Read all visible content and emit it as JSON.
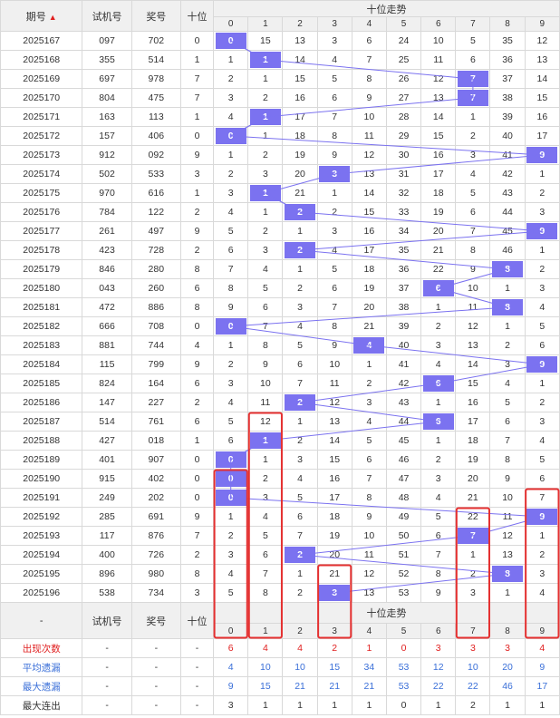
{
  "header": {
    "period": "期号",
    "trial": "试机号",
    "prize": "奖号",
    "tens": "十位",
    "trend": "十位走势",
    "sort_arrow": "▲"
  },
  "digits": [
    "0",
    "1",
    "2",
    "3",
    "4",
    "5",
    "6",
    "7",
    "8",
    "9"
  ],
  "rows": [
    {
      "period": "2025167",
      "trial": "097",
      "prize": "702",
      "tens": "0",
      "cells": [
        "0",
        "15",
        "13",
        "3",
        "6",
        "24",
        "10",
        "5",
        "35",
        "12"
      ],
      "hit": 0
    },
    {
      "period": "2025168",
      "trial": "355",
      "prize": "514",
      "tens": "1",
      "cells": [
        "1",
        "1",
        "14",
        "4",
        "7",
        "25",
        "11",
        "6",
        "36",
        "13"
      ],
      "hit": 1
    },
    {
      "period": "2025169",
      "trial": "697",
      "prize": "978",
      "tens": "7",
      "cells": [
        "2",
        "1",
        "15",
        "5",
        "8",
        "26",
        "12",
        "7",
        "37",
        "14"
      ],
      "hit": 7
    },
    {
      "period": "2025170",
      "trial": "804",
      "prize": "475",
      "tens": "7",
      "cells": [
        "3",
        "2",
        "16",
        "6",
        "9",
        "27",
        "13",
        "7",
        "38",
        "15"
      ],
      "hit": 7
    },
    {
      "period": "2025171",
      "trial": "163",
      "prize": "113",
      "tens": "1",
      "cells": [
        "4",
        "1",
        "17",
        "7",
        "10",
        "28",
        "14",
        "1",
        "39",
        "16"
      ],
      "hit": 1
    },
    {
      "period": "2025172",
      "trial": "157",
      "prize": "406",
      "tens": "0",
      "cells": [
        "0",
        "1",
        "18",
        "8",
        "11",
        "29",
        "15",
        "2",
        "40",
        "17"
      ],
      "hit": 0
    },
    {
      "period": "2025173",
      "trial": "912",
      "prize": "092",
      "tens": "9",
      "cells": [
        "1",
        "2",
        "19",
        "9",
        "12",
        "30",
        "16",
        "3",
        "41",
        "9"
      ],
      "hit": 9
    },
    {
      "period": "2025174",
      "trial": "502",
      "prize": "533",
      "tens": "3",
      "cells": [
        "2",
        "3",
        "20",
        "3",
        "13",
        "31",
        "17",
        "4",
        "42",
        "1"
      ],
      "hit": 3
    },
    {
      "period": "2025175",
      "trial": "970",
      "prize": "616",
      "tens": "1",
      "cells": [
        "3",
        "1",
        "21",
        "1",
        "14",
        "32",
        "18",
        "5",
        "43",
        "2"
      ],
      "hit": 1
    },
    {
      "period": "2025176",
      "trial": "784",
      "prize": "122",
      "tens": "2",
      "cells": [
        "4",
        "1",
        "2",
        "2",
        "15",
        "33",
        "19",
        "6",
        "44",
        "3"
      ],
      "hit": 2
    },
    {
      "period": "2025177",
      "trial": "261",
      "prize": "497",
      "tens": "9",
      "cells": [
        "5",
        "2",
        "1",
        "3",
        "16",
        "34",
        "20",
        "7",
        "45",
        "9"
      ],
      "hit": 9
    },
    {
      "period": "2025178",
      "trial": "423",
      "prize": "728",
      "tens": "2",
      "cells": [
        "6",
        "3",
        "2",
        "4",
        "17",
        "35",
        "21",
        "8",
        "46",
        "1"
      ],
      "hit": 2
    },
    {
      "period": "2025179",
      "trial": "846",
      "prize": "280",
      "tens": "8",
      "cells": [
        "7",
        "4",
        "1",
        "5",
        "18",
        "36",
        "22",
        "9",
        "8",
        "2"
      ],
      "hit": 8
    },
    {
      "period": "2025180",
      "trial": "043",
      "prize": "260",
      "tens": "6",
      "cells": [
        "8",
        "5",
        "2",
        "6",
        "19",
        "37",
        "6",
        "10",
        "1",
        "3"
      ],
      "hit": 6
    },
    {
      "period": "2025181",
      "trial": "472",
      "prize": "886",
      "tens": "8",
      "cells": [
        "9",
        "6",
        "3",
        "7",
        "20",
        "38",
        "1",
        "11",
        "8",
        "4"
      ],
      "hit": 8
    },
    {
      "period": "2025182",
      "trial": "666",
      "prize": "708",
      "tens": "0",
      "cells": [
        "0",
        "7",
        "4",
        "8",
        "21",
        "39",
        "2",
        "12",
        "1",
        "5"
      ],
      "hit": 0
    },
    {
      "period": "2025183",
      "trial": "881",
      "prize": "744",
      "tens": "4",
      "cells": [
        "1",
        "8",
        "5",
        "9",
        "4",
        "40",
        "3",
        "13",
        "2",
        "6"
      ],
      "hit": 4
    },
    {
      "period": "2025184",
      "trial": "115",
      "prize": "799",
      "tens": "9",
      "cells": [
        "2",
        "9",
        "6",
        "10",
        "1",
        "41",
        "4",
        "14",
        "3",
        "9"
      ],
      "hit": 9
    },
    {
      "period": "2025185",
      "trial": "824",
      "prize": "164",
      "tens": "6",
      "cells": [
        "3",
        "10",
        "7",
        "11",
        "2",
        "42",
        "6",
        "15",
        "4",
        "1"
      ],
      "hit": 6
    },
    {
      "period": "2025186",
      "trial": "147",
      "prize": "227",
      "tens": "2",
      "cells": [
        "4",
        "11",
        "2",
        "12",
        "3",
        "43",
        "1",
        "16",
        "5",
        "2"
      ],
      "hit": 2
    },
    {
      "period": "2025187",
      "trial": "514",
      "prize": "761",
      "tens": "6",
      "cells": [
        "5",
        "12",
        "1",
        "13",
        "4",
        "44",
        "6",
        "17",
        "6",
        "3"
      ],
      "hit": 6
    },
    {
      "period": "2025188",
      "trial": "427",
      "prize": "018",
      "tens": "1",
      "cells": [
        "6",
        "1",
        "2",
        "14",
        "5",
        "45",
        "1",
        "18",
        "7",
        "4"
      ],
      "hit": 1
    },
    {
      "period": "2025189",
      "trial": "401",
      "prize": "907",
      "tens": "0",
      "cells": [
        "0",
        "1",
        "3",
        "15",
        "6",
        "46",
        "2",
        "19",
        "8",
        "5"
      ],
      "hit": 0
    },
    {
      "period": "2025190",
      "trial": "915",
      "prize": "402",
      "tens": "0",
      "cells": [
        "0",
        "2",
        "4",
        "16",
        "7",
        "47",
        "3",
        "20",
        "9",
        "6"
      ],
      "hit": 0
    },
    {
      "period": "2025191",
      "trial": "249",
      "prize": "202",
      "tens": "0",
      "cells": [
        "0",
        "3",
        "5",
        "17",
        "8",
        "48",
        "4",
        "21",
        "10",
        "7"
      ],
      "hit": 0
    },
    {
      "period": "2025192",
      "trial": "285",
      "prize": "691",
      "tens": "9",
      "cells": [
        "1",
        "4",
        "6",
        "18",
        "9",
        "49",
        "5",
        "22",
        "11",
        "9"
      ],
      "hit": 9
    },
    {
      "period": "2025193",
      "trial": "117",
      "prize": "876",
      "tens": "7",
      "cells": [
        "2",
        "5",
        "7",
        "19",
        "10",
        "50",
        "6",
        "7",
        "12",
        "1"
      ],
      "hit": 7
    },
    {
      "period": "2025194",
      "trial": "400",
      "prize": "726",
      "tens": "2",
      "cells": [
        "3",
        "6",
        "2",
        "20",
        "11",
        "51",
        "7",
        "1",
        "13",
        "2"
      ],
      "hit": 2
    },
    {
      "period": "2025195",
      "trial": "896",
      "prize": "980",
      "tens": "8",
      "cells": [
        "4",
        "7",
        "1",
        "21",
        "12",
        "52",
        "8",
        "2",
        "8",
        "3"
      ],
      "hit": 8
    },
    {
      "period": "2025196",
      "trial": "538",
      "prize": "734",
      "tens": "3",
      "cells": [
        "5",
        "8",
        "2",
        "3",
        "13",
        "53",
        "9",
        "3",
        "1",
        "4"
      ],
      "hit": 3
    }
  ],
  "footer": {
    "dash": "-",
    "trial": "试机号",
    "prize": "奖号",
    "tens": "十位",
    "trend": "十位走势"
  },
  "stats": [
    {
      "label": "出现次数",
      "style": "red",
      "values": [
        "6",
        "4",
        "4",
        "2",
        "1",
        "0",
        "3",
        "3",
        "3",
        "4"
      ]
    },
    {
      "label": "平均遗漏",
      "style": "blue",
      "values": [
        "4",
        "10",
        "10",
        "15",
        "34",
        "53",
        "12",
        "10",
        "20",
        "9"
      ]
    },
    {
      "label": "最大遗漏",
      "style": "blue",
      "values": [
        "9",
        "15",
        "21",
        "21",
        "21",
        "53",
        "22",
        "22",
        "46",
        "17"
      ]
    },
    {
      "label": "最大连出",
      "style": "plain",
      "values": [
        "3",
        "1",
        "1",
        "1",
        "1",
        "0",
        "1",
        "2",
        "1",
        "1"
      ]
    }
  ],
  "colors": {
    "hit_bg": "#7b72f0",
    "line": "#7b72f0",
    "highlight_box": "#e53030",
    "red_text": "#e02020",
    "blue_text": "#3a6fd8"
  },
  "highlight_digits": [
    0,
    1,
    3,
    7,
    9
  ]
}
